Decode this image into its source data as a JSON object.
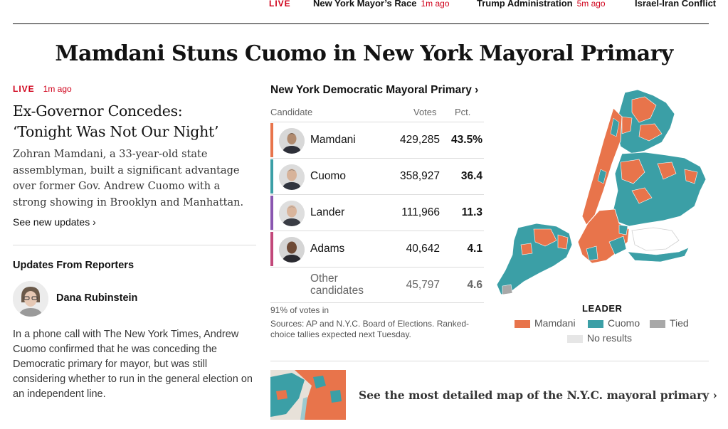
{
  "ticker": {
    "live": "LIVE",
    "items": [
      {
        "label": "New York Mayor’s Race",
        "time": "1m ago"
      },
      {
        "label": "Trump Administration",
        "time": "5m ago"
      },
      {
        "label": "Israel-Iran Conflict",
        "time": ""
      }
    ]
  },
  "headline": "Mamdani Stuns Cuomo in New York Mayoral Primary",
  "story": {
    "live": "LIVE",
    "time": "1m ago",
    "subhead_line1": "Ex-Governor Concedes:",
    "subhead_line2": "‘Tonight Was Not Our Night’",
    "summary": "Zohran Mamdani, a 33-year-old state assemblyman, built a significant advantage over former Gov. Andrew Cuomo with a strong showing in Brooklyn and Manhattan.",
    "see_updates": "See new updates ›"
  },
  "updates": {
    "title": "Updates From Reporters",
    "reporter_name": "Dana Rubinstein",
    "text": "In a phone call with The New York Times, Andrew Cuomo confirmed that he was conceding the Democratic primary for mayor, but was still considering whether to run in the general election on an independent line."
  },
  "results": {
    "title": "New York Democratic Mayoral Primary ›",
    "col_candidate": "Candidate",
    "col_votes": "Votes",
    "col_pct": "Pct.",
    "rows": [
      {
        "name": "Mamdani",
        "votes": "429,285",
        "pct": "43.5%",
        "color": "#e8744b"
      },
      {
        "name": "Cuomo",
        "votes": "358,927",
        "pct": "36.4",
        "color": "#3b9fa6"
      },
      {
        "name": "Lander",
        "votes": "111,966",
        "pct": "11.3",
        "color": "#8a56b0"
      },
      {
        "name": "Adams",
        "votes": "40,642",
        "pct": "4.1",
        "color": "#c2487a"
      }
    ],
    "other": {
      "name_line1": "Other",
      "name_line2": "candidates",
      "votes": "45,797",
      "pct": "4.6"
    },
    "reporting": "91% of votes in",
    "sources": "Sources: AP and N.Y.C. Board of Elections. Ranked-choice tallies expected next Tuesday."
  },
  "map": {
    "leader_title": "LEADER",
    "legend": [
      {
        "label": "Mamdani",
        "color": "#e8744b"
      },
      {
        "label": "Cuomo",
        "color": "#3b9fa6"
      },
      {
        "label": "Tied",
        "color": "#a8a8a8"
      },
      {
        "label": "No results",
        "color": "#e6e6e6"
      }
    ]
  },
  "promo": {
    "text": "See the most detailed map of the N.Y.C. mayoral primary ›"
  },
  "colors": {
    "accent_red": "#d0021b",
    "mamdani": "#e8744b",
    "cuomo": "#3b9fa6",
    "lander": "#8a56b0",
    "adams": "#c2487a"
  }
}
